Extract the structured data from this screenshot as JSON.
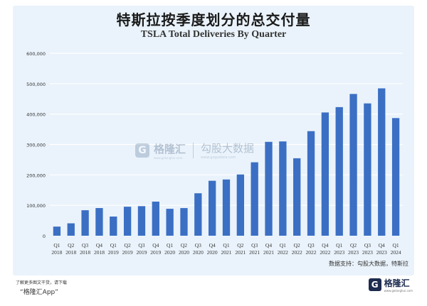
{
  "chart_data": {
    "type": "bar",
    "title": "特斯拉按季度划分的总交付量",
    "subtitle": "TSLA Total Deliveries By Quarter",
    "categories": [
      [
        "Q1",
        "2018"
      ],
      [
        "Q2",
        "2018"
      ],
      [
        "Q3",
        "2018"
      ],
      [
        "Q4",
        "2018"
      ],
      [
        "Q1",
        "2019"
      ],
      [
        "Q2",
        "2019"
      ],
      [
        "Q3",
        "2019"
      ],
      [
        "Q4",
        "2019"
      ],
      [
        "Q1",
        "2020"
      ],
      [
        "Q2",
        "2020"
      ],
      [
        "Q3",
        "2020"
      ],
      [
        "Q4",
        "2020"
      ],
      [
        "Q1",
        "2021"
      ],
      [
        "Q2",
        "2021"
      ],
      [
        "Q3",
        "2021"
      ],
      [
        "Q4",
        "2021"
      ],
      [
        "Q1",
        "2022"
      ],
      [
        "Q2",
        "2022"
      ],
      [
        "Q3",
        "2022"
      ],
      [
        "Q4",
        "2022"
      ],
      [
        "Q1",
        "2023"
      ],
      [
        "Q2",
        "2023"
      ],
      [
        "Q3",
        "2023"
      ],
      [
        "Q4",
        "2023"
      ],
      [
        "Q1",
        "2024"
      ]
    ],
    "values": [
      29997,
      40740,
      83775,
      90966,
      63019,
      95356,
      97186,
      112095,
      88496,
      90891,
      139593,
      180667,
      184877,
      201304,
      241391,
      308650,
      310048,
      254695,
      343830,
      405278,
      422875,
      466140,
      435059,
      484507,
      386810
    ],
    "ylim": [
      0,
      600000
    ],
    "yticks": [
      0,
      100000,
      200000,
      300000,
      400000,
      500000,
      600000
    ],
    "ytick_labels": [
      "0",
      "100,000",
      "200,000",
      "300,000",
      "400,000",
      "500,000",
      "600,000"
    ],
    "grid": true,
    "bar_color": "#3b6fc4",
    "grid_color": "#ffffff"
  },
  "source_text": "数据支持：勾股大数据，特斯拉",
  "footer": {
    "note": "了解更多图文干货，请下载",
    "app": "“格隆汇App”"
  },
  "brand": {
    "mark": "G",
    "name": "格隆汇",
    "sub": "www.gelonghui.com"
  },
  "watermark": {
    "mark": "G",
    "name": "格隆汇",
    "sub": "www.gelonghui.com",
    "name2": "勾股大数据",
    "sub2": "www.gogudata.com"
  }
}
